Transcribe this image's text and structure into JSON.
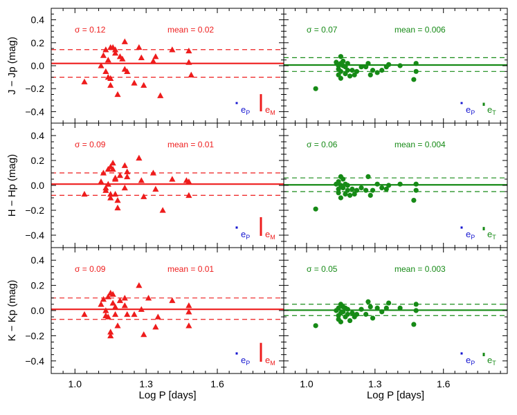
{
  "chart_data": {
    "type": "scatter",
    "x_label": "Log P [days]",
    "x_ticks": [
      "1.0",
      "1.3",
      "1.6"
    ],
    "x_tick_values": [
      1.0,
      1.3,
      1.6
    ],
    "xlim": [
      0.9,
      1.88
    ],
    "ylim": [
      -0.5,
      0.5
    ],
    "y_ticks": [
      "0.4",
      "0.2",
      "0.0",
      "−0.2",
      "−0.4"
    ],
    "y_tick_values": [
      0.4,
      0.2,
      0.0,
      -0.2,
      -0.4
    ],
    "colors": {
      "red": "#ee1c1c",
      "green": "#168a16",
      "blue": "#1515d0",
      "axis": "#000000"
    },
    "rows": [
      {
        "ylabel": "J − Jp (mag)",
        "error_bars": {
          "eP": 0.035,
          "eM": 0.15,
          "eT": 0.06
        },
        "left": {
          "marker": "triangle",
          "sigma_text": "σ =  0.12",
          "mean_text": "mean =  0.02",
          "mean": 0.02,
          "band": [
            0.14,
            -0.1
          ],
          "points": [
            [
              1.04,
              -0.14
            ],
            [
              1.11,
              0.0
            ],
            [
              1.12,
              0.09
            ],
            [
              1.13,
              0.14
            ],
            [
              1.13,
              -0.05
            ],
            [
              1.14,
              0.05
            ],
            [
              1.14,
              -0.1
            ],
            [
              1.15,
              0.16
            ],
            [
              1.15,
              -0.11
            ],
            [
              1.15,
              -0.17
            ],
            [
              1.16,
              0.16
            ],
            [
              1.17,
              0.14
            ],
            [
              1.17,
              0.11
            ],
            [
              1.18,
              -0.25
            ],
            [
              1.19,
              0.08
            ],
            [
              1.2,
              0.06
            ],
            [
              1.21,
              0.21
            ],
            [
              1.21,
              -0.03
            ],
            [
              1.22,
              -0.05
            ],
            [
              1.25,
              -0.15
            ],
            [
              1.27,
              0.16
            ],
            [
              1.28,
              0.07
            ],
            [
              1.29,
              -0.17
            ],
            [
              1.33,
              0.04
            ],
            [
              1.34,
              0.08
            ],
            [
              1.36,
              -0.26
            ],
            [
              1.41,
              0.14
            ],
            [
              1.48,
              0.13
            ],
            [
              1.48,
              0.03
            ],
            [
              1.49,
              -0.08
            ]
          ]
        },
        "right": {
          "marker": "circle",
          "sigma_text": "σ =  0.07",
          "mean_text": "mean = 0.006",
          "mean": 0.006,
          "band": [
            0.07,
            -0.05
          ],
          "points": [
            [
              1.04,
              -0.2
            ],
            [
              1.13,
              0.03
            ],
            [
              1.14,
              0.0
            ],
            [
              1.14,
              -0.03
            ],
            [
              1.14,
              -0.08
            ],
            [
              1.15,
              0.08
            ],
            [
              1.15,
              0.02
            ],
            [
              1.15,
              -0.05
            ],
            [
              1.15,
              -0.11
            ],
            [
              1.16,
              0.04
            ],
            [
              1.16,
              0.0
            ],
            [
              1.17,
              -0.01
            ],
            [
              1.17,
              -0.07
            ],
            [
              1.18,
              0.02
            ],
            [
              1.18,
              -0.04
            ],
            [
              1.19,
              -0.09
            ],
            [
              1.2,
              -0.04
            ],
            [
              1.21,
              -0.08
            ],
            [
              1.22,
              -0.05
            ],
            [
              1.24,
              -0.01
            ],
            [
              1.26,
              -0.01
            ],
            [
              1.27,
              0.02
            ],
            [
              1.28,
              -0.08
            ],
            [
              1.29,
              -0.04
            ],
            [
              1.31,
              -0.06
            ],
            [
              1.33,
              -0.04
            ],
            [
              1.35,
              -0.01
            ],
            [
              1.36,
              0.01
            ],
            [
              1.41,
              0.0
            ],
            [
              1.47,
              -0.12
            ],
            [
              1.48,
              0.02
            ],
            [
              1.48,
              -0.05
            ]
          ]
        }
      },
      {
        "ylabel": "H − Hp (mag)",
        "error_bars": {
          "eP": 0.035,
          "eM": 0.15,
          "eT": 0.06
        },
        "left": {
          "marker": "triangle",
          "sigma_text": "σ =  0.09",
          "mean_text": "mean =  0.01",
          "mean": 0.01,
          "band": [
            0.1,
            -0.08
          ],
          "points": [
            [
              1.04,
              -0.07
            ],
            [
              1.11,
              0.03
            ],
            [
              1.12,
              0.1
            ],
            [
              1.13,
              -0.02
            ],
            [
              1.13,
              -0.04
            ],
            [
              1.14,
              0.13
            ],
            [
              1.14,
              0.01
            ],
            [
              1.15,
              -0.07
            ],
            [
              1.15,
              -0.1
            ],
            [
              1.15,
              0.15
            ],
            [
              1.16,
              0.18
            ],
            [
              1.16,
              0.13
            ],
            [
              1.17,
              0.06
            ],
            [
              1.17,
              0.05
            ],
            [
              1.17,
              -0.07
            ],
            [
              1.18,
              -0.12
            ],
            [
              1.18,
              -0.18
            ],
            [
              1.19,
              0.08
            ],
            [
              1.21,
              0.16
            ],
            [
              1.21,
              -0.02
            ],
            [
              1.22,
              0.07
            ],
            [
              1.22,
              0.11
            ],
            [
              1.27,
              0.22
            ],
            [
              1.28,
              0.04
            ],
            [
              1.29,
              -0.09
            ],
            [
              1.33,
              0.1
            ],
            [
              1.34,
              -0.03
            ],
            [
              1.37,
              -0.2
            ],
            [
              1.41,
              0.05
            ],
            [
              1.47,
              0.04
            ],
            [
              1.48,
              -0.08
            ],
            [
              1.48,
              0.03
            ]
          ]
        },
        "right": {
          "marker": "circle",
          "sigma_text": "σ =  0.06",
          "mean_text": "mean = 0.004",
          "mean": 0.004,
          "band": [
            0.06,
            -0.05
          ],
          "points": [
            [
              1.04,
              -0.19
            ],
            [
              1.13,
              0.01
            ],
            [
              1.14,
              0.03
            ],
            [
              1.14,
              -0.03
            ],
            [
              1.14,
              -0.06
            ],
            [
              1.15,
              0.07
            ],
            [
              1.15,
              0.0
            ],
            [
              1.15,
              -0.1
            ],
            [
              1.16,
              0.05
            ],
            [
              1.16,
              -0.02
            ],
            [
              1.17,
              0.01
            ],
            [
              1.17,
              -0.07
            ],
            [
              1.18,
              0.0
            ],
            [
              1.18,
              -0.04
            ],
            [
              1.19,
              -0.08
            ],
            [
              1.2,
              -0.03
            ],
            [
              1.21,
              -0.07
            ],
            [
              1.22,
              -0.04
            ],
            [
              1.24,
              -0.02
            ],
            [
              1.26,
              -0.04
            ],
            [
              1.27,
              0.07
            ],
            [
              1.28,
              -0.08
            ],
            [
              1.29,
              -0.04
            ],
            [
              1.31,
              0.01
            ],
            [
              1.33,
              -0.02
            ],
            [
              1.35,
              -0.03
            ],
            [
              1.36,
              0.0
            ],
            [
              1.41,
              0.01
            ],
            [
              1.47,
              -0.12
            ],
            [
              1.48,
              0.01
            ],
            [
              1.48,
              -0.04
            ]
          ]
        }
      },
      {
        "ylabel": "K − Kp (mag)",
        "error_bars": {
          "eP": 0.035,
          "eM": 0.15,
          "eT": 0.06
        },
        "left": {
          "marker": "triangle",
          "sigma_text": "σ =  0.09",
          "mean_text": "mean =  0.01",
          "mean": 0.01,
          "band": [
            0.1,
            -0.07
          ],
          "points": [
            [
              1.04,
              -0.03
            ],
            [
              1.11,
              0.05
            ],
            [
              1.12,
              0.09
            ],
            [
              1.13,
              0.0
            ],
            [
              1.13,
              -0.04
            ],
            [
              1.14,
              0.11
            ],
            [
              1.14,
              -0.05
            ],
            [
              1.15,
              0.14
            ],
            [
              1.15,
              -0.17
            ],
            [
              1.15,
              -0.2
            ],
            [
              1.16,
              0.13
            ],
            [
              1.16,
              0.06
            ],
            [
              1.17,
              0.03
            ],
            [
              1.17,
              -0.03
            ],
            [
              1.18,
              -0.12
            ],
            [
              1.19,
              0.08
            ],
            [
              1.21,
              0.1
            ],
            [
              1.21,
              0.04
            ],
            [
              1.22,
              -0.03
            ],
            [
              1.25,
              -0.03
            ],
            [
              1.27,
              0.2
            ],
            [
              1.28,
              0.01
            ],
            [
              1.29,
              -0.19
            ],
            [
              1.31,
              0.1
            ],
            [
              1.34,
              -0.13
            ],
            [
              1.35,
              -0.05
            ],
            [
              1.41,
              0.08
            ],
            [
              1.48,
              0.04
            ],
            [
              1.48,
              -0.01
            ],
            [
              1.48,
              -0.12
            ]
          ]
        },
        "right": {
          "marker": "circle",
          "sigma_text": "σ =  0.05",
          "mean_text": "mean = 0.003",
          "mean": 0.003,
          "band": [
            0.05,
            -0.04
          ],
          "points": [
            [
              1.04,
              -0.12
            ],
            [
              1.13,
              0.0
            ],
            [
              1.14,
              0.02
            ],
            [
              1.14,
              -0.04
            ],
            [
              1.14,
              -0.07
            ],
            [
              1.15,
              0.05
            ],
            [
              1.15,
              -0.02
            ],
            [
              1.15,
              -0.09
            ],
            [
              1.16,
              0.03
            ],
            [
              1.16,
              -0.01
            ],
            [
              1.17,
              0.02
            ],
            [
              1.17,
              -0.05
            ],
            [
              1.18,
              0.01
            ],
            [
              1.18,
              -0.03
            ],
            [
              1.19,
              -0.08
            ],
            [
              1.2,
              -0.02
            ],
            [
              1.21,
              -0.05
            ],
            [
              1.22,
              -0.03
            ],
            [
              1.24,
              0.01
            ],
            [
              1.26,
              -0.03
            ],
            [
              1.27,
              0.07
            ],
            [
              1.28,
              0.03
            ],
            [
              1.29,
              -0.06
            ],
            [
              1.31,
              0.02
            ],
            [
              1.33,
              -0.01
            ],
            [
              1.35,
              0.02
            ],
            [
              1.36,
              0.06
            ],
            [
              1.41,
              0.02
            ],
            [
              1.47,
              -0.11
            ],
            [
              1.48,
              0.05
            ],
            [
              1.48,
              0.0
            ]
          ]
        }
      }
    ]
  },
  "labels": {
    "eP": "e",
    "eP_sub": "P",
    "eM": "e",
    "eM_sub": "M",
    "eT": "e",
    "eT_sub": "T"
  }
}
